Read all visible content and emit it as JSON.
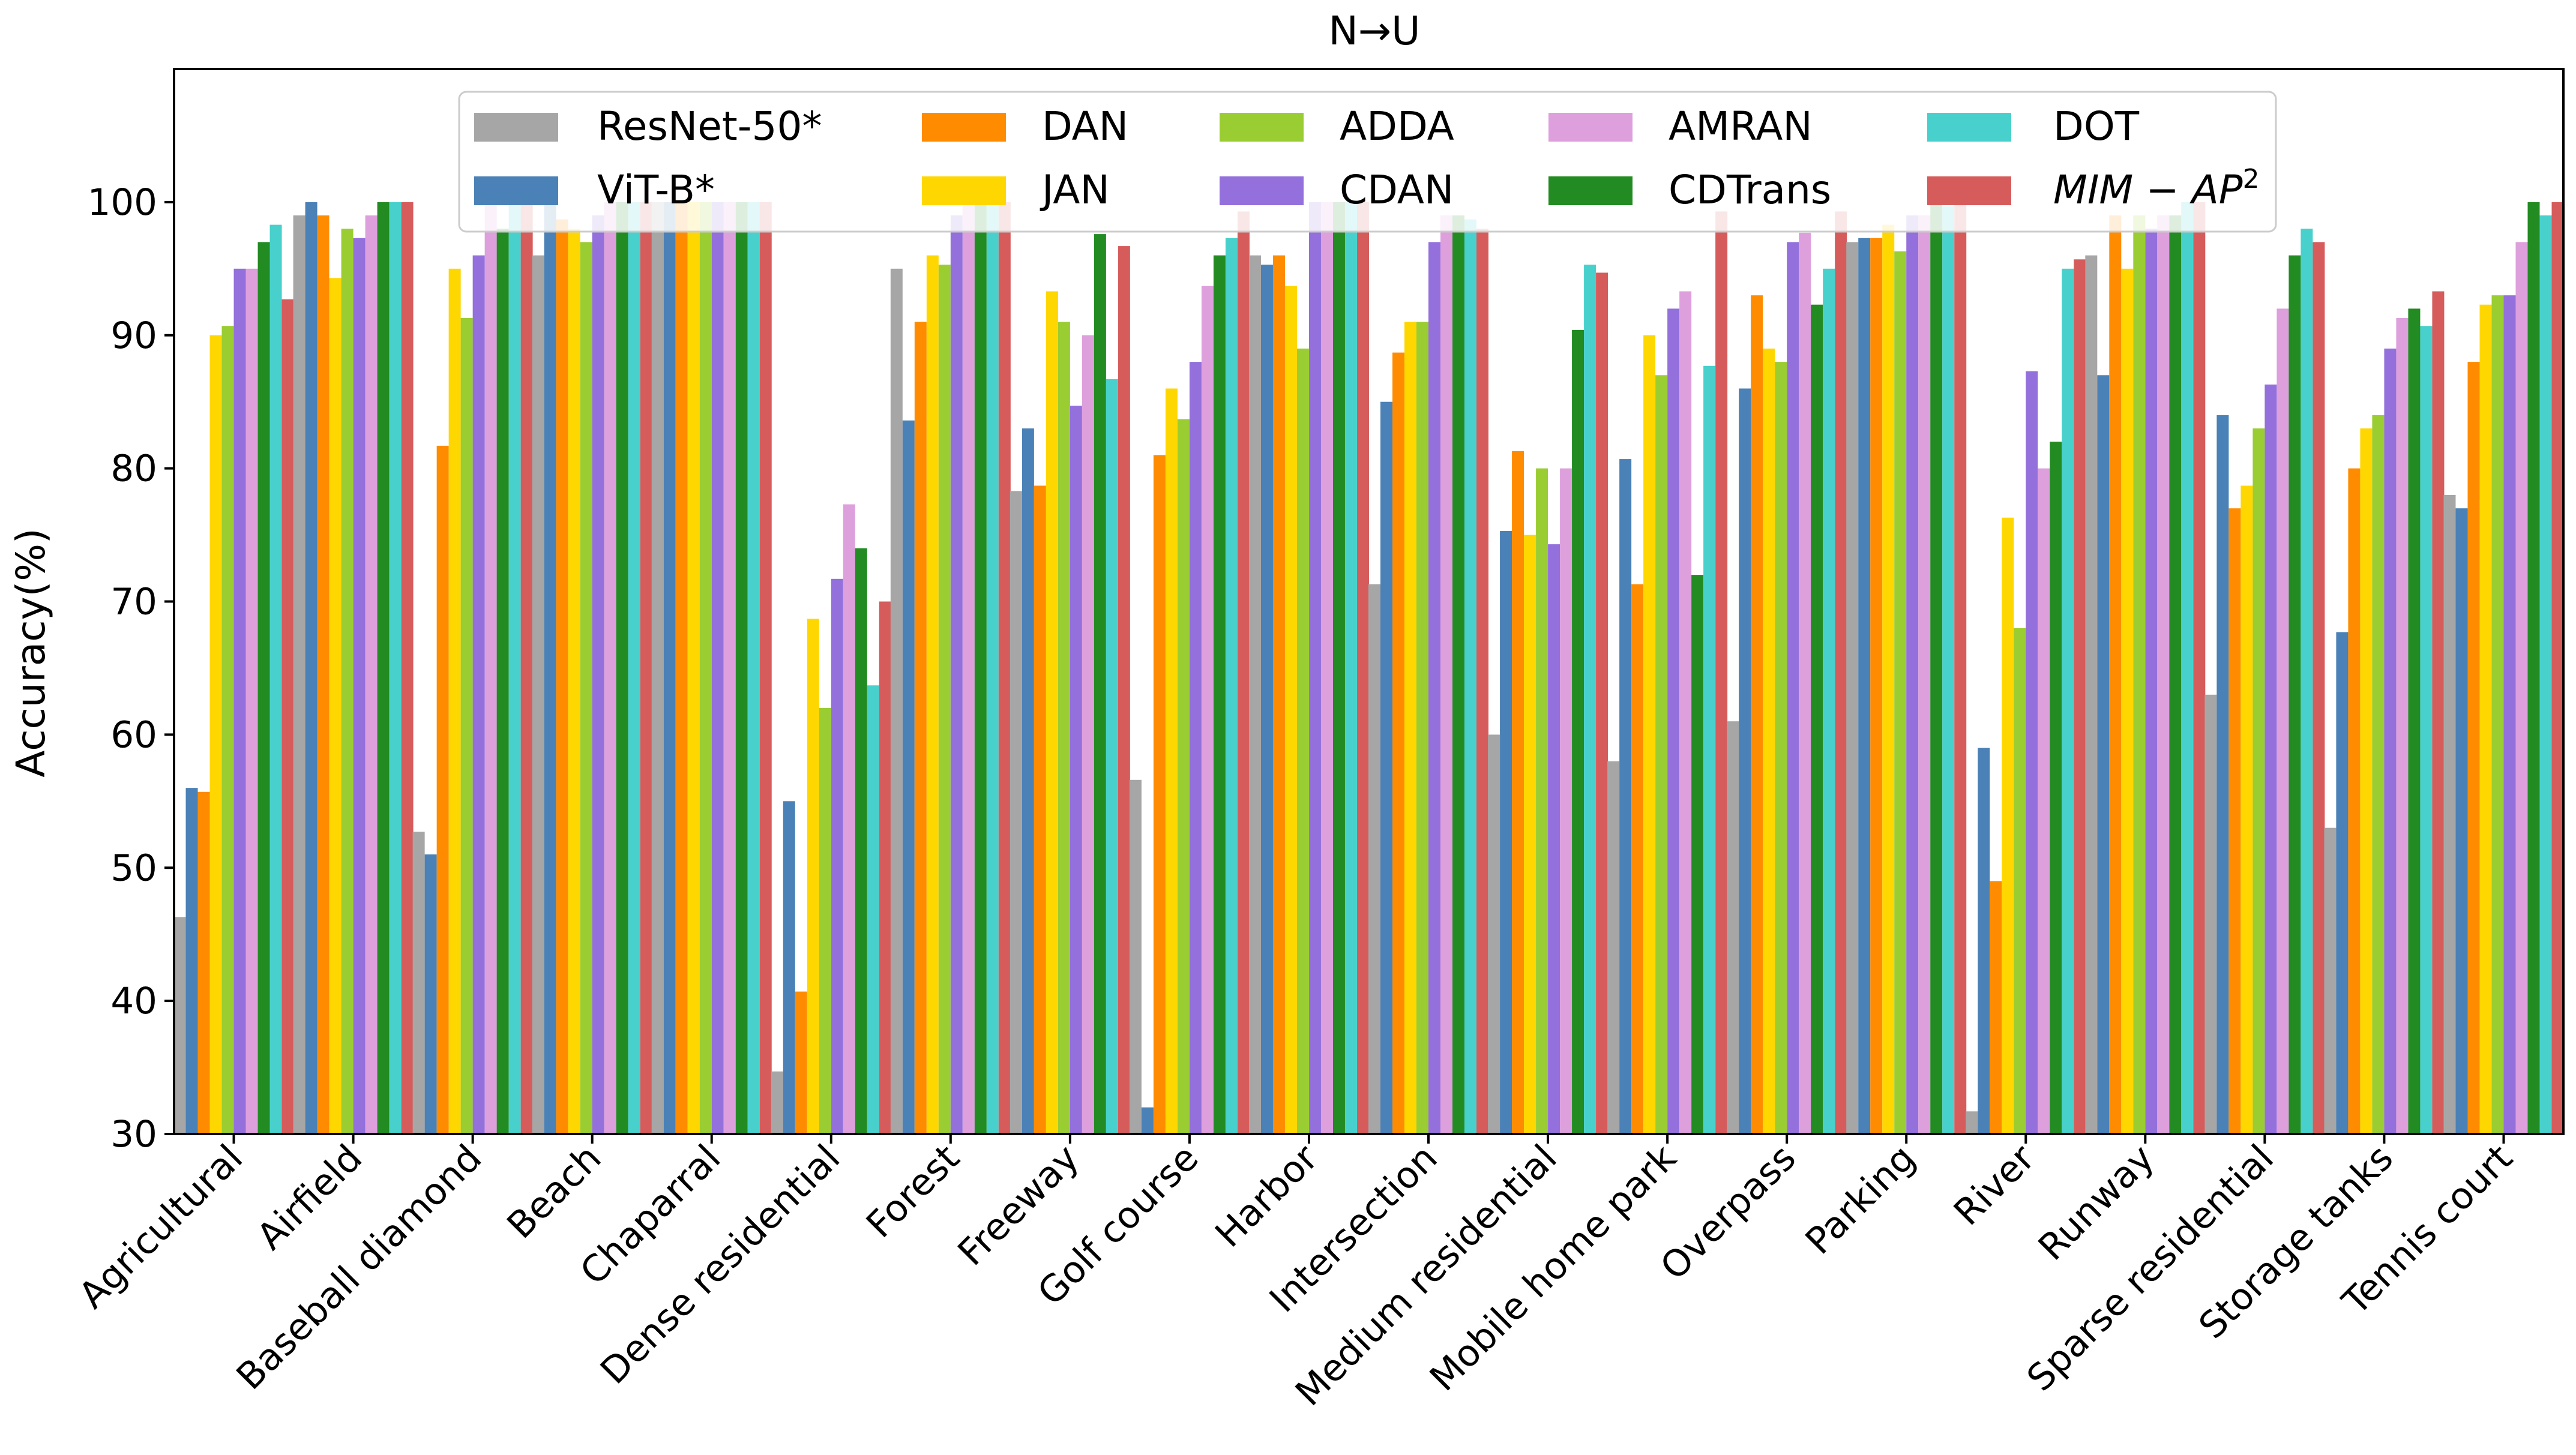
{
  "chart_data": {
    "type": "bar",
    "title": "N→U",
    "xlabel": "",
    "ylabel": "Accuracy(%)",
    "ylim": [
      30,
      110
    ],
    "yticks": [
      30,
      40,
      50,
      60,
      70,
      80,
      90,
      100
    ],
    "grid": false,
    "legend_position": "top-center",
    "categories": [
      "Agricultural",
      "Airfield",
      "Baseball diamond",
      "Beach",
      "Chaparral",
      "Dense residential",
      "Forest",
      "Freeway",
      "Golf course",
      "Harbor",
      "Intersection",
      "Medium residential",
      "Mobile home park",
      "Overpass",
      "Parking",
      "River",
      "Runway",
      "Sparse residential",
      "Storage tanks",
      "Tennis court"
    ],
    "series": [
      {
        "name": "ResNet-50*",
        "color": "#a6a6a6",
        "values": [
          46.3,
          99,
          52.7,
          96,
          100,
          34.7,
          95,
          78.3,
          56.6,
          96,
          71.3,
          60,
          58,
          61,
          97,
          31.7,
          96,
          63,
          53,
          78
        ]
      },
      {
        "name": "ViT-B*",
        "color": "#4a81b6",
        "values": [
          56,
          100,
          51,
          100,
          100,
          55,
          83.6,
          83,
          32,
          95.3,
          85,
          75.3,
          80.7,
          86,
          97.3,
          59,
          87,
          84,
          67.7,
          77
        ]
      },
      {
        "name": "DAN",
        "color": "#ff8c00",
        "values": [
          55.7,
          99,
          81.7,
          98.7,
          100,
          40.7,
          91,
          78.7,
          81,
          96,
          88.7,
          81.3,
          71.3,
          93,
          97.3,
          49,
          99,
          77,
          80,
          88
        ]
      },
      {
        "name": "JAN",
        "color": "#ffd700",
        "values": [
          90,
          94.3,
          95,
          98,
          100,
          68.7,
          96,
          93.3,
          86,
          93.7,
          91,
          75,
          90,
          89,
          98.3,
          76.3,
          95,
          78.7,
          83,
          92.3
        ]
      },
      {
        "name": "ADDA",
        "color": "#9acd32",
        "values": [
          90.7,
          98,
          91.3,
          97,
          100,
          62,
          95.3,
          91,
          83.7,
          89,
          91,
          80,
          87,
          88,
          96.3,
          68,
          99,
          83,
          84,
          93
        ]
      },
      {
        "name": "CDAN",
        "color": "#9370db",
        "values": [
          95,
          97.3,
          96,
          99,
          100,
          71.7,
          99,
          84.7,
          88,
          100,
          97,
          74.3,
          92,
          97,
          99,
          87.3,
          98,
          86.3,
          89,
          93
        ]
      },
      {
        "name": "AMRAN",
        "color": "#dda0dd",
        "values": [
          95,
          99,
          100,
          100,
          100,
          77.3,
          100,
          90,
          93.7,
          100,
          99,
          80,
          93.3,
          97.7,
          99,
          80,
          99,
          92,
          91.3,
          97
        ]
      },
      {
        "name": "CDTrans",
        "color": "#228b22",
        "values": [
          97,
          100,
          98,
          100,
          100,
          74,
          100,
          97.6,
          96,
          100,
          99,
          90.4,
          72,
          92.3,
          100,
          82,
          99,
          96,
          92,
          100
        ]
      },
      {
        "name": "DOT",
        "color": "#48d1cc",
        "values": [
          98.3,
          100,
          100,
          100,
          100,
          63.7,
          100,
          86.7,
          97.3,
          100,
          98.7,
          95.3,
          87.7,
          95,
          99.7,
          95,
          100,
          98,
          90.7,
          99
        ]
      },
      {
        "name": "MIM-AP²",
        "color": "#d65c5c",
        "values": [
          92.7,
          100,
          100,
          100,
          100,
          70,
          100,
          96.7,
          99.3,
          100,
          98,
          94.7,
          99.3,
          99.3,
          100,
          95.7,
          100,
          97,
          93.3,
          100
        ]
      }
    ]
  },
  "legend": {
    "labels": [
      "ResNet-50*",
      "ViT-B*",
      "DAN",
      "JAN",
      "ADDA",
      "CDAN",
      "AMRAN",
      "CDTrans",
      "DOT"
    ],
    "last_label_main": "MIM − AP",
    "last_label_sup": "2"
  }
}
